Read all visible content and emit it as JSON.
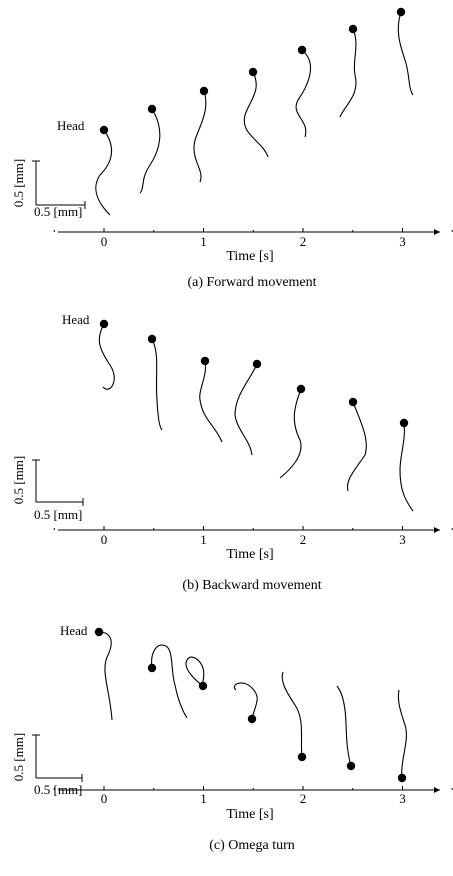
{
  "panels": [
    {
      "caption": "(a) Forward movement",
      "xlabel": "Time [s]",
      "head_label": "Head",
      "scale_x_label": "0.5 [mm]",
      "scale_y_label": "0.5 [mm]",
      "ticks": [
        0,
        1,
        2,
        3
      ]
    },
    {
      "caption": "(b) Backward movement",
      "xlabel": "Time [s]",
      "head_label": "Head",
      "scale_x_label": "0.5 [mm]",
      "scale_y_label": "0.5 [mm]",
      "ticks": [
        0,
        1,
        2,
        3
      ]
    },
    {
      "caption": "(c) Omega turn",
      "xlabel": "Time [s]",
      "head_label": "Head",
      "scale_x_label": "0.5 [mm]",
      "scale_y_label": "0.5 [mm]",
      "ticks": [
        0,
        1,
        2,
        3
      ]
    }
  ]
}
